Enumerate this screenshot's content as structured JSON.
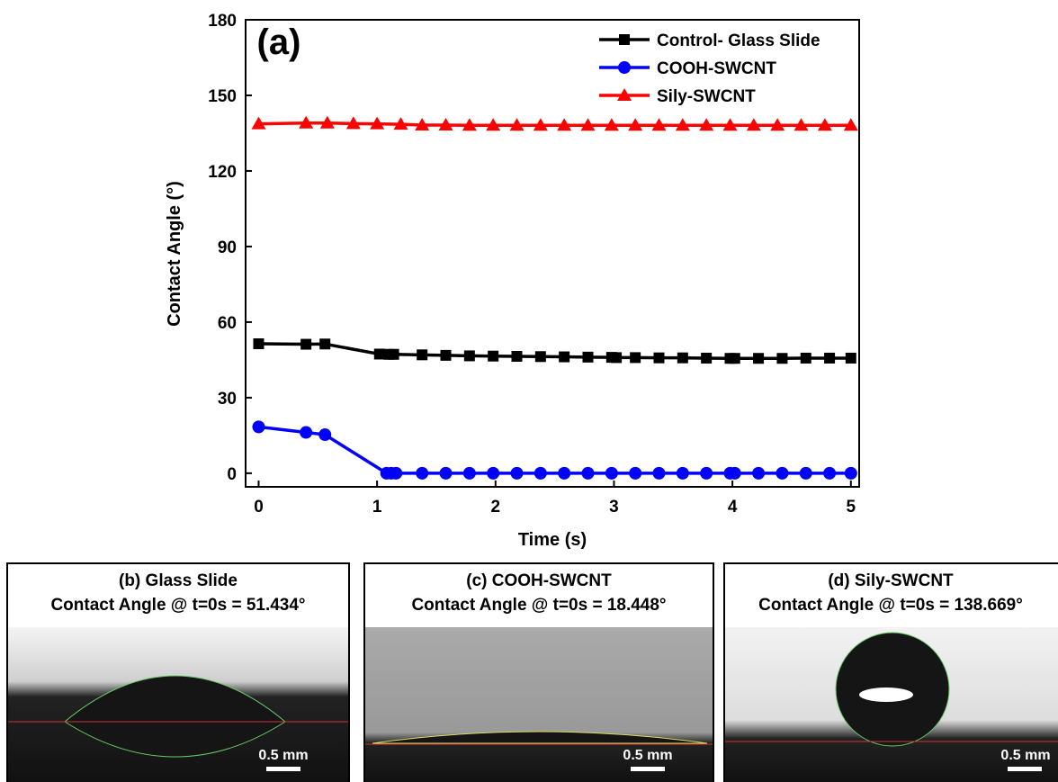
{
  "chart_data": {
    "type": "line",
    "panel_label": "(a)",
    "x_label": "Time (s)",
    "y_label": "Contact Angle (°)",
    "xlim": [
      -0.11,
      5.07
    ],
    "ylim": [
      -5.4,
      180
    ],
    "xticks": [
      0,
      1,
      2,
      3,
      4,
      5
    ],
    "yticks": [
      0,
      30,
      60,
      90,
      120,
      150,
      180
    ],
    "legend": "upper right",
    "series": [
      {
        "name": "Control- Glass Slide",
        "color": "#000000",
        "marker": "square",
        "x": [
          0,
          0.4,
          0.56,
          1.02,
          1.1,
          1.14,
          1.38,
          1.58,
          1.78,
          1.98,
          2.18,
          2.38,
          2.58,
          2.78,
          2.98,
          3.02,
          3.18,
          3.38,
          3.58,
          3.78,
          3.98,
          4.02,
          4.22,
          4.42,
          4.62,
          4.82,
          5.0
        ],
        "values": [
          51.4,
          51.2,
          51.3,
          47.3,
          47.2,
          47.2,
          47.0,
          46.8,
          46.6,
          46.5,
          46.4,
          46.3,
          46.2,
          46.1,
          46.0,
          45.9,
          45.9,
          45.8,
          45.8,
          45.7,
          45.6,
          45.6,
          45.6,
          45.6,
          45.7,
          45.7,
          45.7
        ]
      },
      {
        "name": "COOH-SWCNT",
        "color": "#0000ff",
        "marker": "circle",
        "x": [
          0,
          0.4,
          0.56,
          1.08,
          1.12,
          1.16,
          1.38,
          1.58,
          1.78,
          1.98,
          2.18,
          2.38,
          2.58,
          2.78,
          2.98,
          3.18,
          3.38,
          3.58,
          3.78,
          3.98,
          4.02,
          4.22,
          4.42,
          4.62,
          4.82,
          5.0
        ],
        "values": [
          18.4,
          16.2,
          15.3,
          0,
          0,
          0,
          0,
          0,
          0,
          0,
          0,
          0,
          0,
          0,
          0,
          0,
          0,
          0,
          0,
          0,
          0,
          0,
          0,
          0,
          0,
          0
        ]
      },
      {
        "name": "Sily-SWCNT",
        "color": "#ff0000",
        "marker": "triangle",
        "x": [
          0,
          0.4,
          0.58,
          0.8,
          1.0,
          1.2,
          1.38,
          1.58,
          1.78,
          1.98,
          2.18,
          2.38,
          2.58,
          2.78,
          2.98,
          3.18,
          3.38,
          3.58,
          3.78,
          3.98,
          4.18,
          4.38,
          4.58,
          4.78,
          5.0
        ],
        "values": [
          138.7,
          139.0,
          139.0,
          138.8,
          138.7,
          138.5,
          138.2,
          138.2,
          138.1,
          138.1,
          138.1,
          138.1,
          138.1,
          138.1,
          138.1,
          138.1,
          138.1,
          138.1,
          138.1,
          138.1,
          138.1,
          138.1,
          138.1,
          138.1,
          138.1
        ]
      }
    ]
  },
  "panels": [
    {
      "title": "(b) Glass Slide",
      "subtitle": "Contact Angle @ t=0s = 51.434°",
      "scale": "0.5 mm"
    },
    {
      "title": "(c) COOH-SWCNT",
      "subtitle": "Contact Angle @ t=0s = 18.448°",
      "scale": "0.5 mm"
    },
    {
      "title": "(d) Sily-SWCNT",
      "subtitle": "Contact Angle @ t=0s = 138.669°",
      "scale": "0.5 mm"
    }
  ]
}
